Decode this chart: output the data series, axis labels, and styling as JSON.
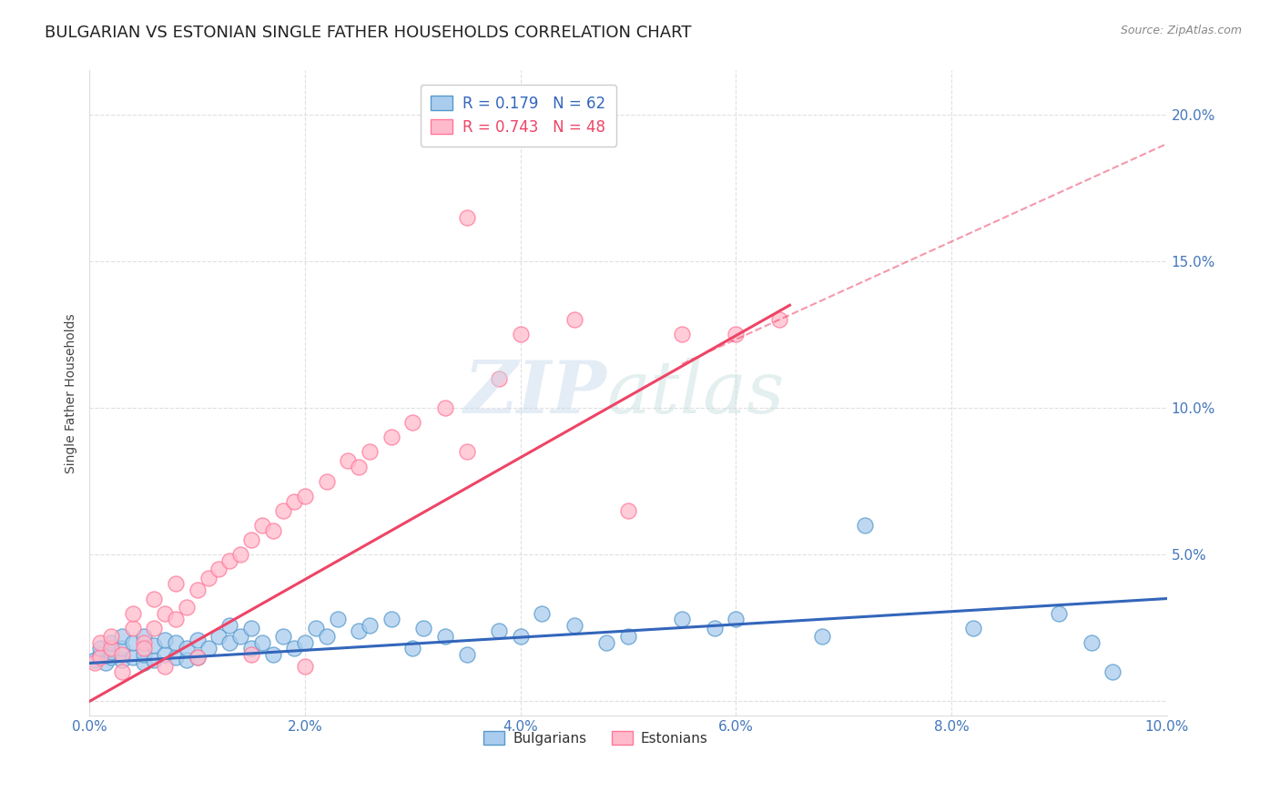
{
  "title": "BULGARIAN VS ESTONIAN SINGLE FATHER HOUSEHOLDS CORRELATION CHART",
  "source": "Source: ZipAtlas.com",
  "ylabel_label": "Single Father Households",
  "xlim": [
    0.0,
    0.1
  ],
  "ylim": [
    -0.005,
    0.215
  ],
  "xticks": [
    0.0,
    0.02,
    0.04,
    0.06,
    0.08,
    0.1
  ],
  "yticks": [
    0.0,
    0.05,
    0.1,
    0.15,
    0.2
  ],
  "xticklabels": [
    "0.0%",
    "2.0%",
    "4.0%",
    "6.0%",
    "8.0%",
    "10.0%"
  ],
  "yticklabels_right": [
    "",
    "5.0%",
    "10.0%",
    "15.0%",
    "20.0%"
  ],
  "legend_R1": "R = 0.179",
  "legend_N1": "N = 62",
  "legend_R2": "R = 0.743",
  "legend_N2": "N = 48",
  "blue_line_color": "#3366BB",
  "pink_line_color": "#EE4466",
  "blue_fill_color": "#AACCEE",
  "pink_fill_color": "#FFBBCC",
  "blue_edge_color": "#5599CC",
  "pink_edge_color": "#FF7799",
  "title_fontsize": 13,
  "axis_label_fontsize": 10,
  "tick_fontsize": 11,
  "background_color": "#FFFFFF",
  "grid_color": "#CCCCCC",
  "tick_color": "#4477BB",
  "blue_line_y0": 0.013,
  "blue_line_y1": 0.035,
  "pink_line_x0": 0.0,
  "pink_line_y0": 0.0,
  "pink_line_x1": 0.065,
  "pink_line_y1": 0.135,
  "dash_line_x0": 0.055,
  "dash_line_y0": 0.115,
  "dash_line_x1": 0.1,
  "dash_line_y1": 0.19,
  "bulgarians_x": [
    0.0005,
    0.001,
    0.001,
    0.0015,
    0.002,
    0.002,
    0.002,
    0.003,
    0.003,
    0.003,
    0.004,
    0.004,
    0.005,
    0.005,
    0.005,
    0.006,
    0.006,
    0.007,
    0.007,
    0.008,
    0.008,
    0.009,
    0.009,
    0.01,
    0.01,
    0.011,
    0.012,
    0.013,
    0.013,
    0.014,
    0.015,
    0.015,
    0.016,
    0.017,
    0.018,
    0.019,
    0.02,
    0.021,
    0.022,
    0.023,
    0.025,
    0.026,
    0.028,
    0.03,
    0.031,
    0.033,
    0.035,
    0.038,
    0.04,
    0.042,
    0.045,
    0.048,
    0.05,
    0.055,
    0.058,
    0.06,
    0.068,
    0.072,
    0.082,
    0.09,
    0.093,
    0.095
  ],
  "bulgarians_y": [
    0.014,
    0.016,
    0.018,
    0.013,
    0.015,
    0.017,
    0.02,
    0.014,
    0.018,
    0.022,
    0.015,
    0.02,
    0.013,
    0.016,
    0.022,
    0.014,
    0.019,
    0.016,
    0.021,
    0.015,
    0.02,
    0.014,
    0.018,
    0.015,
    0.021,
    0.018,
    0.022,
    0.02,
    0.026,
    0.022,
    0.018,
    0.025,
    0.02,
    0.016,
    0.022,
    0.018,
    0.02,
    0.025,
    0.022,
    0.028,
    0.024,
    0.026,
    0.028,
    0.018,
    0.025,
    0.022,
    0.016,
    0.024,
    0.022,
    0.03,
    0.026,
    0.02,
    0.022,
    0.028,
    0.025,
    0.028,
    0.022,
    0.06,
    0.025,
    0.03,
    0.02,
    0.01
  ],
  "estonians_x": [
    0.0005,
    0.001,
    0.001,
    0.002,
    0.002,
    0.003,
    0.004,
    0.004,
    0.005,
    0.006,
    0.006,
    0.007,
    0.008,
    0.008,
    0.009,
    0.01,
    0.011,
    0.012,
    0.013,
    0.014,
    0.015,
    0.016,
    0.017,
    0.018,
    0.019,
    0.02,
    0.022,
    0.024,
    0.026,
    0.028,
    0.03,
    0.033,
    0.035,
    0.038,
    0.04,
    0.045,
    0.05,
    0.055,
    0.06,
    0.064,
    0.003,
    0.005,
    0.007,
    0.01,
    0.015,
    0.02,
    0.025,
    0.035
  ],
  "estonians_y": [
    0.013,
    0.015,
    0.02,
    0.018,
    0.022,
    0.016,
    0.025,
    0.03,
    0.02,
    0.025,
    0.035,
    0.03,
    0.04,
    0.028,
    0.032,
    0.038,
    0.042,
    0.045,
    0.048,
    0.05,
    0.055,
    0.06,
    0.058,
    0.065,
    0.068,
    0.07,
    0.075,
    0.082,
    0.085,
    0.09,
    0.095,
    0.1,
    0.085,
    0.11,
    0.125,
    0.13,
    0.065,
    0.125,
    0.125,
    0.13,
    0.01,
    0.018,
    0.012,
    0.015,
    0.016,
    0.012,
    0.08,
    0.165
  ]
}
